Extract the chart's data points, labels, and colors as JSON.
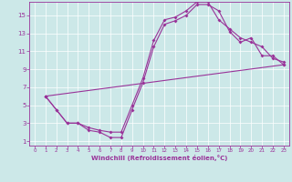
{
  "xlabel": "Windchill (Refroidissement éolien,°C)",
  "bg_color": "#cce8e8",
  "line_color": "#993399",
  "xlim": [
    -0.5,
    23.5
  ],
  "ylim": [
    0.5,
    16.5
  ],
  "xticks": [
    0,
    1,
    2,
    3,
    4,
    5,
    6,
    7,
    8,
    9,
    10,
    11,
    12,
    13,
    14,
    15,
    16,
    17,
    18,
    19,
    20,
    21,
    22,
    23
  ],
  "yticks": [
    1,
    3,
    5,
    7,
    9,
    11,
    13,
    15
  ],
  "curve1_x": [
    1,
    2,
    3,
    4,
    5,
    6,
    7,
    8,
    9,
    10,
    11,
    12,
    13,
    14,
    15,
    16,
    17,
    18,
    19,
    20,
    21,
    22,
    23
  ],
  "curve1_y": [
    6,
    4.5,
    3,
    3,
    2.2,
    2.0,
    1.4,
    1.4,
    4.5,
    7.5,
    11.5,
    14.0,
    14.4,
    15.0,
    16.2,
    16.2,
    15.5,
    13.2,
    12.0,
    12.5,
    10.5,
    10.5,
    9.5
  ],
  "curve2_x": [
    1,
    2,
    3,
    4,
    5,
    6,
    7,
    8,
    9,
    10,
    11,
    12,
    13,
    14,
    15,
    16,
    17,
    18,
    19,
    20,
    21,
    22,
    23
  ],
  "curve2_y": [
    6,
    4.5,
    3,
    3,
    2.5,
    2.2,
    2.0,
    2.0,
    5.0,
    8.0,
    12.2,
    14.5,
    14.8,
    15.5,
    16.5,
    16.5,
    14.5,
    13.5,
    12.5,
    12.0,
    11.5,
    10.2,
    9.8
  ],
  "curve3_x": [
    1,
    23
  ],
  "curve3_y": [
    6.0,
    9.5
  ]
}
